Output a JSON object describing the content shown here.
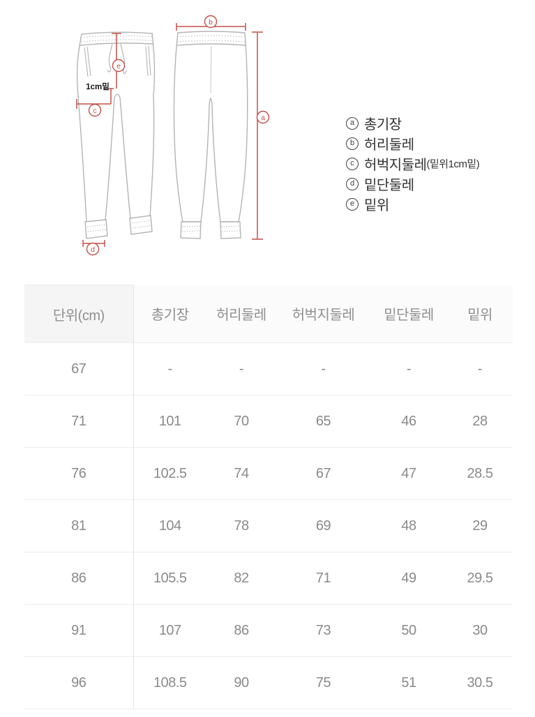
{
  "diagram": {
    "note_1cm": "1cm밑",
    "markers": {
      "a": "a",
      "b": "b",
      "c": "c",
      "d": "d",
      "e": "e"
    },
    "accent_color": "#c2504a",
    "outline_color": "#b4b4b4"
  },
  "legend": {
    "items": [
      {
        "key": "a",
        "label": "총기장",
        "suffix": ""
      },
      {
        "key": "b",
        "label": "허리둘레",
        "suffix": ""
      },
      {
        "key": "c",
        "label": "허벅지둘레",
        "suffix": "(밑위1cm밑)"
      },
      {
        "key": "d",
        "label": "밑단둘레",
        "suffix": ""
      },
      {
        "key": "e",
        "label": "밑위",
        "suffix": ""
      }
    ]
  },
  "size_table": {
    "headers": [
      "단위(cm)",
      "총기장",
      "허리둘레",
      "허벅지둘레",
      "밑단둘레",
      "밑위"
    ],
    "rows": [
      [
        "67",
        "-",
        "-",
        "-",
        "-",
        "-"
      ],
      [
        "71",
        "101",
        "70",
        "65",
        "46",
        "28"
      ],
      [
        "76",
        "102.5",
        "74",
        "67",
        "47",
        "28.5"
      ],
      [
        "81",
        "104",
        "78",
        "69",
        "48",
        "29"
      ],
      [
        "86",
        "105.5",
        "82",
        "71",
        "49",
        "29.5"
      ],
      [
        "91",
        "107",
        "86",
        "73",
        "50",
        "30"
      ],
      [
        "96",
        "108.5",
        "90",
        "75",
        "51",
        "30.5"
      ]
    ]
  },
  "chart_data": {
    "type": "table",
    "columns": [
      "단위(cm)",
      "총기장",
      "허리둘레",
      "허벅지둘레",
      "밑단둘레",
      "밑위"
    ],
    "rows": [
      [
        "67",
        null,
        null,
        null,
        null,
        null
      ],
      [
        "71",
        101,
        70,
        65,
        46,
        28
      ],
      [
        "76",
        102.5,
        74,
        67,
        47,
        28.5
      ],
      [
        "81",
        104,
        78,
        69,
        48,
        29
      ],
      [
        "86",
        105.5,
        82,
        71,
        49,
        29.5
      ],
      [
        "91",
        107,
        86,
        73,
        50,
        30
      ],
      [
        "96",
        108.5,
        90,
        75,
        51,
        30.5
      ]
    ],
    "legend_entries": [
      "a 총기장",
      "b 허리둘레",
      "c 허벅지둘레(밑위1cm밑)",
      "d 밑단둘레",
      "e 밑위"
    ],
    "units": "cm"
  }
}
